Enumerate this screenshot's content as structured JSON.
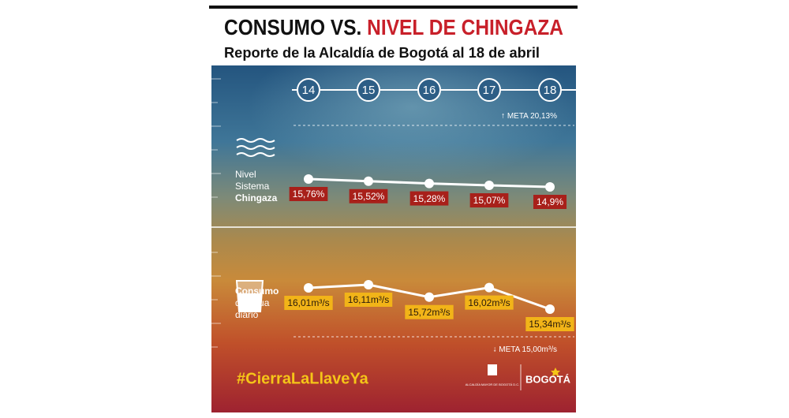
{
  "title": "CONSUMO VS.",
  "title_highlight": "NIVEL DE CHINGAZA",
  "subtitle": "Reporte de la Alcaldía de Bogotá al 18 de abril",
  "hashtag": "#CierraLaLlaveYa",
  "logo_small": "ALCALDÍA MAYOR DE BOGOTÁ D.C.",
  "logo": "BOGOTÁ",
  "chart_data": [
    {
      "type": "line",
      "label": [
        "Nivel",
        "Sistema",
        "Chingaza"
      ],
      "categories": [
        "14",
        "15",
        "16",
        "17",
        "18"
      ],
      "values": [
        15.76,
        15.52,
        15.28,
        15.07,
        14.9
      ],
      "value_labels": [
        "15,76%",
        "15,52%",
        "15,28%",
        "15,07%",
        "14,9%"
      ],
      "goal": "META 20,13%",
      "color": "#ffffff",
      "label_color": "#a8201a"
    },
    {
      "type": "line",
      "label": [
        "Consumo",
        "de agua",
        "diario"
      ],
      "values": [
        16.01,
        16.11,
        15.72,
        16.02,
        15.34
      ],
      "value_labels": [
        "16,01m³/s",
        "16,11m³/s",
        "15,72m³/s",
        "16,02m³/s",
        "15,34m³/s"
      ],
      "goal": "META 15,00m³/s",
      "color": "#ffffff",
      "label_color": "#f2b418"
    }
  ]
}
